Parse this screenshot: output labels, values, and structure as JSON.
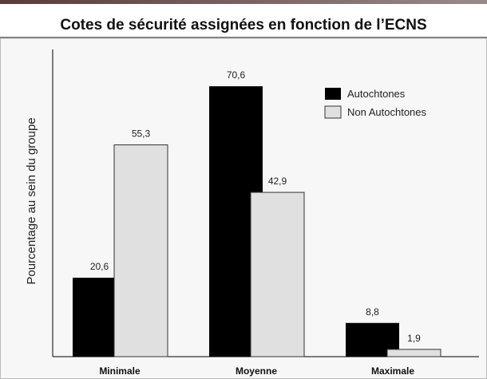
{
  "chart_data": {
    "type": "bar",
    "title": "Cotes de sécurité assignées en fonction de l’ECNS",
    "y_label": "Pourcentage au sein du groupe",
    "categories": [
      "Minimale",
      "Moyenne",
      "Maximale"
    ],
    "series": [
      {
        "name": "Autochtones",
        "color": "#000000",
        "values": [
          20.6,
          70.6,
          8.8
        ],
        "value_labels": [
          "20,6",
          "70,6",
          "8,8"
        ]
      },
      {
        "name": "Non Autochtones",
        "color": "#e0e0e0",
        "values": [
          55.3,
          42.9,
          1.9
        ],
        "value_labels": [
          "55,3",
          "42,9",
          "1,9"
        ]
      }
    ],
    "ylim": [
      0,
      80
    ],
    "legend": "upper right",
    "grid": false
  }
}
